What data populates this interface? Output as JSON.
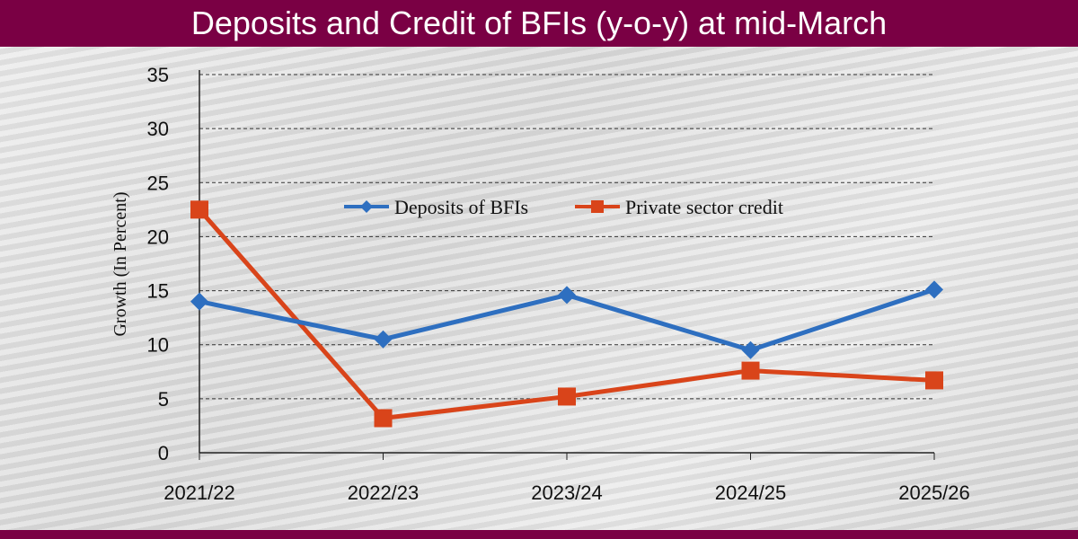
{
  "chart_data": {
    "type": "line",
    "title": "Deposits and Credit of BFIs (y-o-y) at mid-March",
    "xlabel": "",
    "ylabel": "Growth (In Percent)",
    "categories": [
      "2021/22",
      "2022/23",
      "2023/24",
      "2024/25",
      "2025/26"
    ],
    "ylim": [
      0,
      35
    ],
    "yticks": [
      0,
      5,
      10,
      15,
      20,
      25,
      30,
      35
    ],
    "grid": true,
    "legend_position": "center",
    "series": [
      {
        "name": "Deposits of BFIs",
        "color": "#2e6fc0",
        "marker": "diamond",
        "values": [
          14.0,
          10.5,
          14.6,
          9.5,
          15.1
        ]
      },
      {
        "name": "Private sector credit",
        "color": "#d9441a",
        "marker": "square",
        "values": [
          22.5,
          3.2,
          5.2,
          7.6,
          6.7
        ]
      }
    ]
  }
}
